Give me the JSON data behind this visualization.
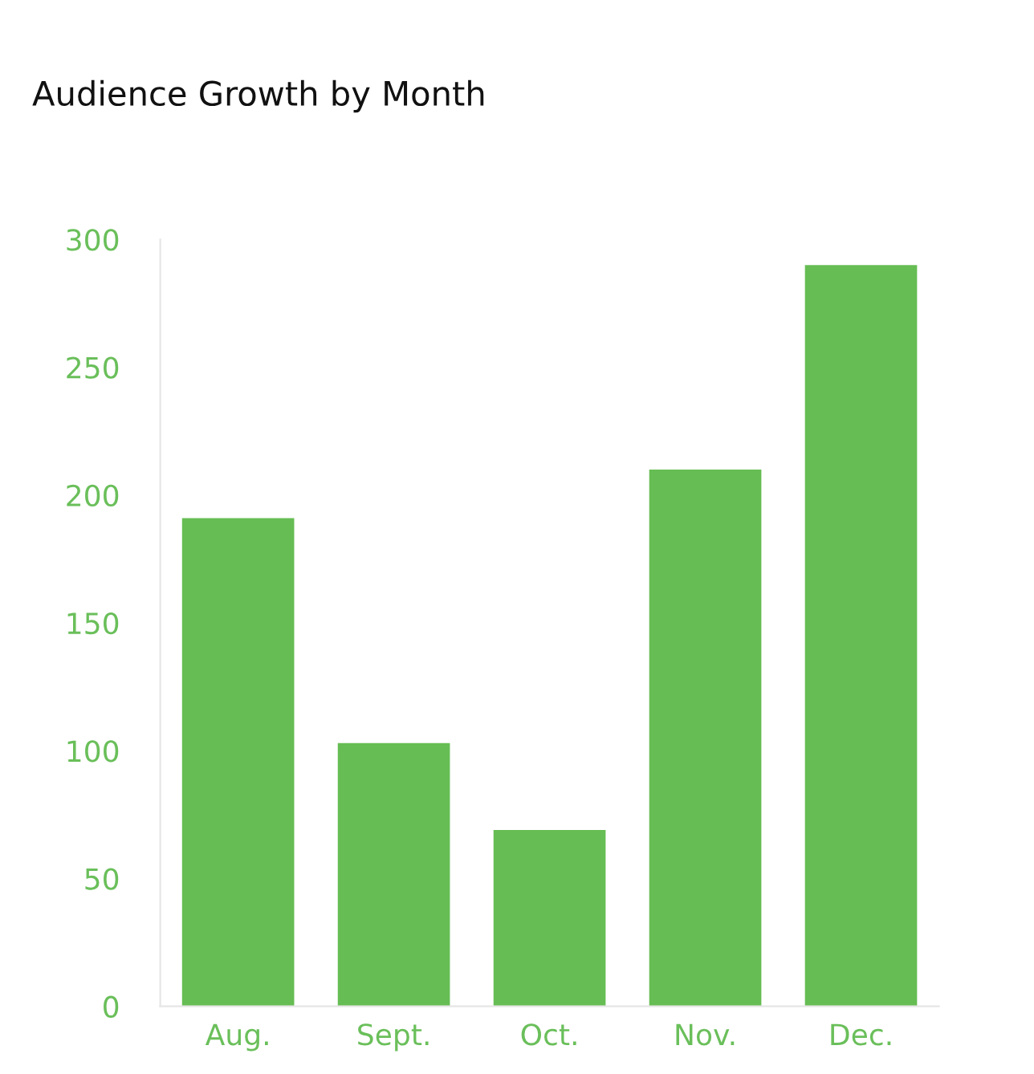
{
  "chart_data": {
    "type": "bar",
    "title": "Audience Growth by Month",
    "categories": [
      "Aug.",
      "Sept.",
      "Oct.",
      "Nov.",
      "Dec."
    ],
    "values": [
      191,
      103,
      69,
      210,
      290
    ],
    "color": "#66bd53",
    "ylim": [
      0,
      300
    ],
    "yticks": [
      0,
      50,
      100,
      150,
      200,
      250,
      300
    ],
    "grid": false
  }
}
